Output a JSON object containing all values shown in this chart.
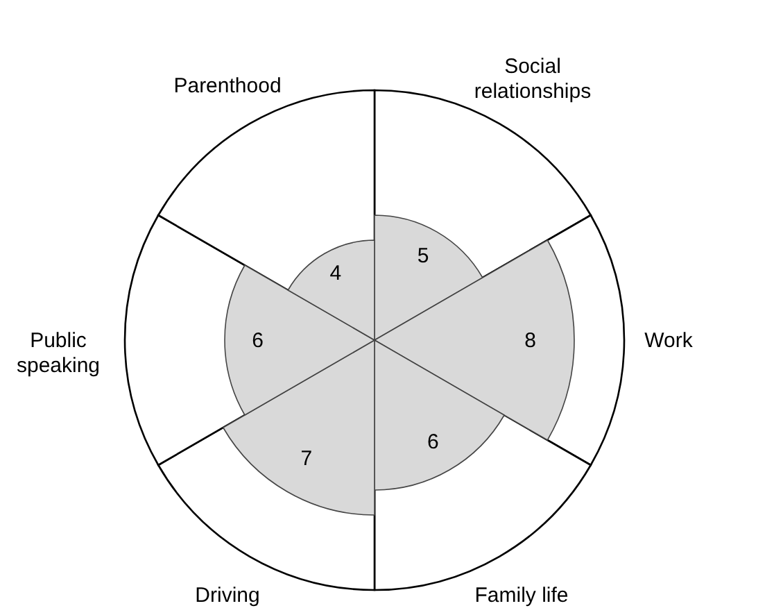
{
  "chart_data": {
    "type": "other",
    "categories": [
      "Social relationships",
      "Work",
      "Family life",
      "Driving",
      "Public speaking",
      "Parenthood"
    ],
    "values": [
      5,
      8,
      6,
      7,
      6,
      4
    ],
    "color": "#d9d9d9",
    "data_labels": true
  }
}
